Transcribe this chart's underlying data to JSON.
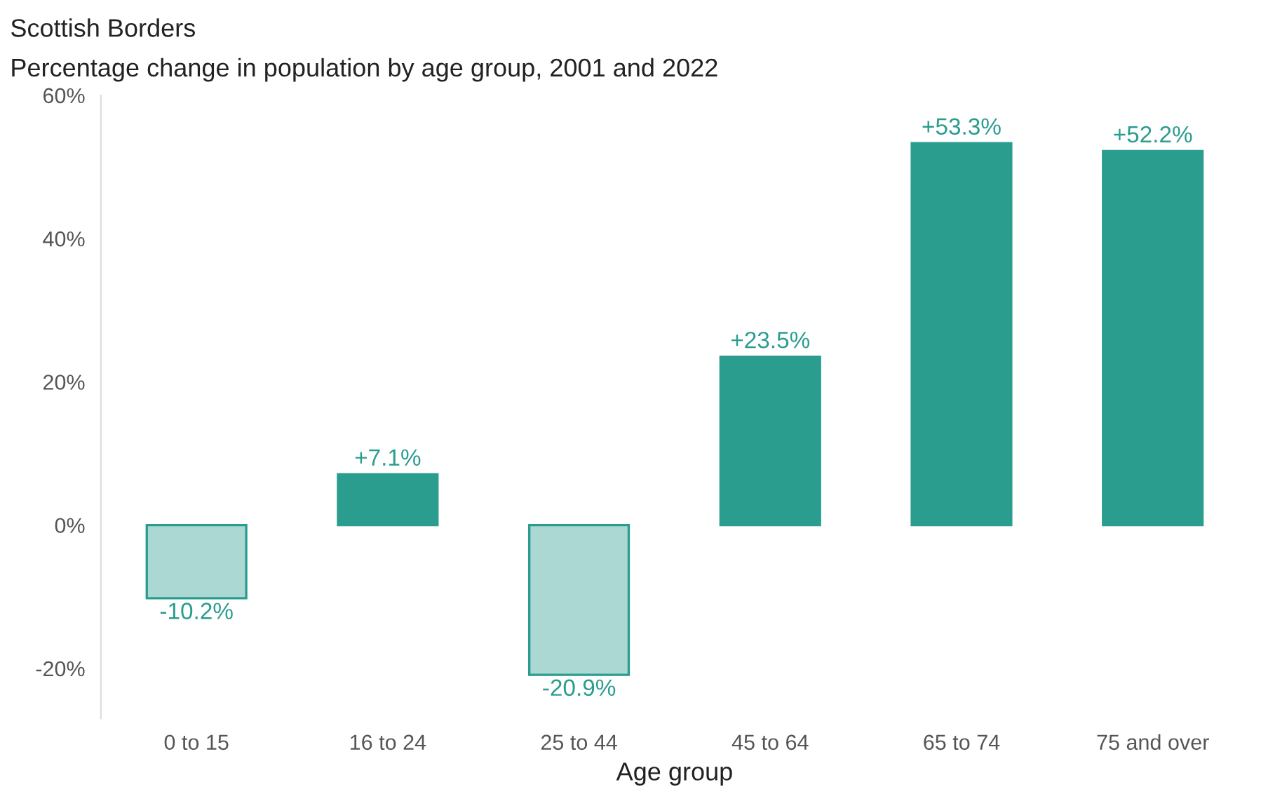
{
  "chart_data": {
    "type": "bar",
    "title": "Scottish Borders",
    "subtitle": "Percentage change in population by age group, 2001 and 2022",
    "xlabel": "Age group",
    "categories": [
      "0 to 15",
      "16 to 24",
      "25 to 44",
      "45 to 64",
      "65 to 74",
      "75 and over"
    ],
    "values": [
      -10.2,
      7.1,
      -20.9,
      23.5,
      53.3,
      52.2
    ],
    "value_labels": [
      "-10.2%",
      "+7.1%",
      "-20.9%",
      "+23.5%",
      "+53.3%",
      "+52.2%"
    ],
    "colors": [
      "#acd8d3",
      "#2a9d8f",
      "#acd8d3",
      "#2a9d8f",
      "#2a9d8f",
      "#2a9d8f"
    ],
    "color": "#2a9d8f",
    "ylim": [
      -27,
      60
    ],
    "yticks": [
      {
        "value": -20,
        "label": "-20%"
      },
      {
        "value": 0,
        "label": "0%"
      },
      {
        "value": 20,
        "label": "20%"
      },
      {
        "value": 40,
        "label": "40%"
      },
      {
        "value": 60,
        "label": "60%"
      }
    ],
    "grid": false
  }
}
